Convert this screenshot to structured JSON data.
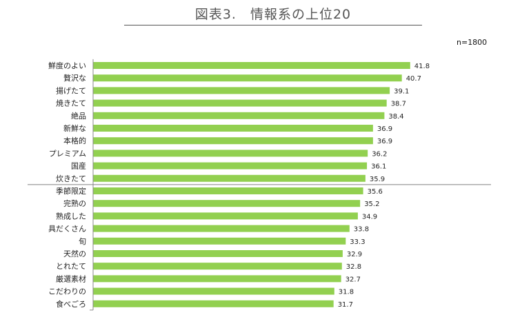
{
  "header": {
    "title": "図表3.　情報系の上位20",
    "sample": "n=1800"
  },
  "colors": {
    "bar": "#92d050",
    "axis": "#888888",
    "divider": "#7f7f7f",
    "text": "#222222"
  },
  "chart_data": {
    "type": "bar",
    "orientation": "horizontal",
    "title": "図表3.　情報系の上位20",
    "categories": [
      "鮮度のよい",
      "贅沢な",
      "揚げたて",
      "焼きたて",
      "絶品",
      "新鮮な",
      "本格的",
      "プレミアム",
      "国産",
      "炊きたて",
      "季節限定",
      "完熟の",
      "熟成した",
      "具だくさん",
      "旬",
      "天然の",
      "とれたて",
      "厳選素材",
      "こだわりの",
      "食べごろ"
    ],
    "values": [
      41.8,
      40.7,
      39.1,
      38.7,
      38.4,
      36.9,
      36.9,
      36.2,
      36.1,
      35.9,
      35.6,
      35.2,
      34.9,
      33.8,
      33.3,
      32.9,
      32.8,
      32.7,
      31.8,
      31.7
    ],
    "data_labels": [
      "41.8",
      "40.7",
      "39.1",
      "38.7",
      "38.4",
      "36.9",
      "36.9",
      "36.2",
      "36.1",
      "35.9",
      "35.6",
      "35.2",
      "34.9",
      "33.8",
      "33.3",
      "32.9",
      "32.8",
      "32.7",
      "31.8",
      "31.7"
    ],
    "xlim": [
      0,
      44
    ],
    "grid": false,
    "legend": "none",
    "divider_after_index": 9
  }
}
